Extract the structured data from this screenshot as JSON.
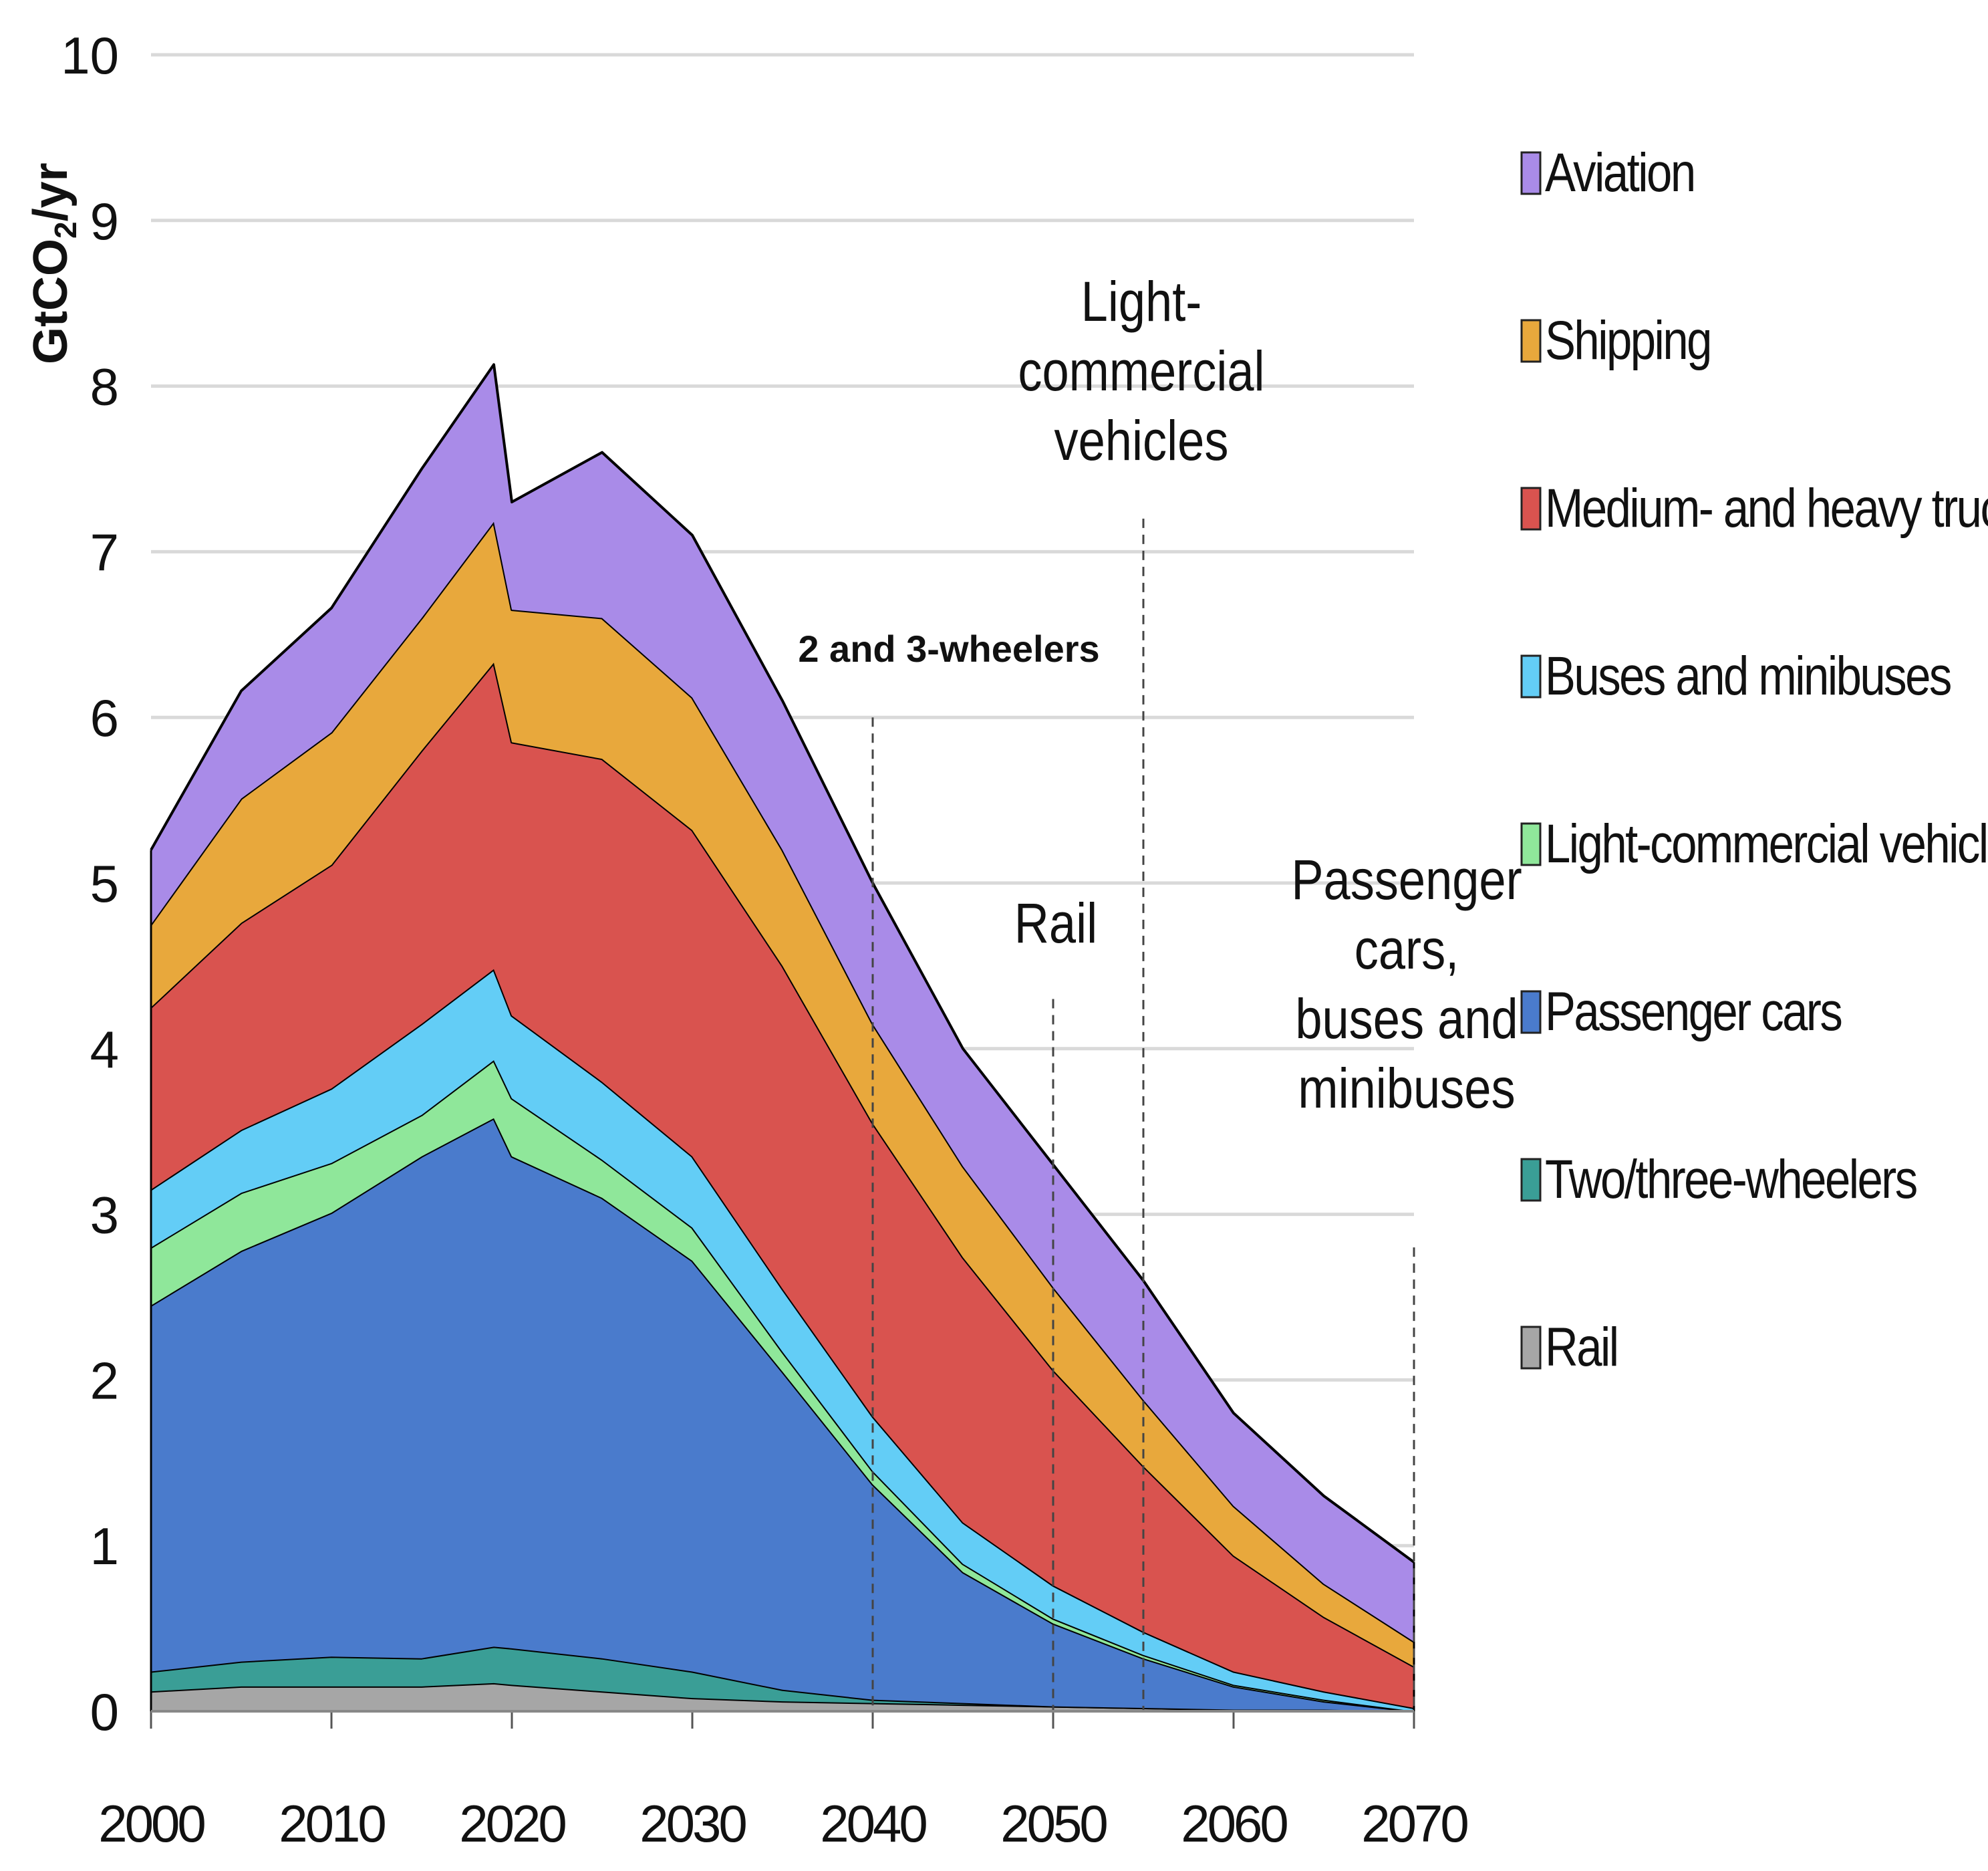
{
  "chart_data": {
    "type": "area",
    "stacked": true,
    "title": "",
    "xlabel": "",
    "ylabel": "GtCO2/yr",
    "ylabel_main": "GtCO",
    "ylabel_sub": "2",
    "ylabel_tail": "/yr",
    "xlim": [
      2000,
      2070
    ],
    "ylim": [
      0,
      10
    ],
    "grid": true,
    "x_ticks": [
      "2000",
      "2010",
      "2020",
      "2030",
      "2040",
      "2050",
      "2060",
      "2070"
    ],
    "y_ticks": [
      "0",
      "1",
      "2",
      "3",
      "4",
      "5",
      "6",
      "7",
      "8",
      "9",
      "10"
    ],
    "x": [
      2000,
      2005,
      2010,
      2015,
      2019,
      2020,
      2025,
      2030,
      2035,
      2040,
      2045,
      2050,
      2055,
      2060,
      2065,
      2070
    ],
    "series": [
      {
        "name": "Rail",
        "color": "#a6a6a6",
        "values": [
          0.12,
          0.15,
          0.15,
          0.15,
          0.17,
          0.16,
          0.12,
          0.08,
          0.06,
          0.05,
          0.04,
          0.03,
          0.02,
          0.01,
          0.01,
          0.0
        ]
      },
      {
        "name": "Two/three-wheelers",
        "color": "#3a9e96",
        "values": [
          0.12,
          0.15,
          0.18,
          0.17,
          0.22,
          0.22,
          0.2,
          0.16,
          0.07,
          0.02,
          0.01,
          0.0,
          0.0,
          0.0,
          0.0,
          0.0
        ]
      },
      {
        "name": "Passenger cars",
        "color": "#4a7bcc",
        "values": [
          2.21,
          2.48,
          2.68,
          3.03,
          3.19,
          2.97,
          2.78,
          2.48,
          1.92,
          1.3,
          0.79,
          0.5,
          0.3,
          0.14,
          0.05,
          0.0
        ]
      },
      {
        "name": "Light-commercial vehicles",
        "color": "#8fe79a",
        "values": [
          0.35,
          0.35,
          0.3,
          0.25,
          0.35,
          0.35,
          0.23,
          0.2,
          0.12,
          0.08,
          0.05,
          0.03,
          0.02,
          0.01,
          0.01,
          0.0
        ]
      },
      {
        "name": "Buses and minibuses",
        "color": "#63cdf6",
        "values": [
          0.35,
          0.38,
          0.45,
          0.55,
          0.55,
          0.5,
          0.47,
          0.43,
          0.38,
          0.33,
          0.25,
          0.2,
          0.14,
          0.08,
          0.05,
          0.02
        ]
      },
      {
        "name": "Medium- and heavy trucks",
        "color": "#d9534f",
        "values": [
          1.1,
          1.25,
          1.35,
          1.65,
          1.85,
          1.65,
          1.95,
          1.97,
          1.95,
          1.77,
          1.6,
          1.3,
          1.0,
          0.7,
          0.45,
          0.25
        ]
      },
      {
        "name": "Shipping",
        "color": "#e8a83c",
        "values": [
          0.5,
          0.75,
          0.8,
          0.8,
          0.85,
          0.8,
          0.85,
          0.8,
          0.7,
          0.6,
          0.55,
          0.5,
          0.4,
          0.3,
          0.2,
          0.15
        ]
      },
      {
        "name": "Aviation",
        "color": "#a98be8",
        "values": [
          0.45,
          0.65,
          0.75,
          0.9,
          0.95,
          0.65,
          1.0,
          0.98,
          0.9,
          0.85,
          0.71,
          0.74,
          0.72,
          0.56,
          0.53,
          0.48
        ]
      }
    ],
    "legend_order": [
      "Aviation",
      "Shipping",
      "Medium- and heavy trucks",
      "Buses and minibuses",
      "Light-commercial vehicles",
      "Passenger cars",
      "Two/three-wheelers",
      "Rail"
    ],
    "legend_position": "right",
    "annotations": [
      {
        "label": "2 and 3-wheelers",
        "x": 2040,
        "y_top": 6.0,
        "bold": true
      },
      {
        "label_lines": [
          "Rail"
        ],
        "x": 2050,
        "y_top": 4.3,
        "bold": false
      },
      {
        "label_lines": [
          "Light-",
          "commercial",
          "vehicles"
        ],
        "x": 2055,
        "y_top": 7.2,
        "bold": false
      },
      {
        "label_lines": [
          "Passenger",
          "cars,",
          "buses and",
          "minibuses"
        ],
        "x": 2070,
        "y_top": 2.8,
        "bold": false
      }
    ]
  }
}
